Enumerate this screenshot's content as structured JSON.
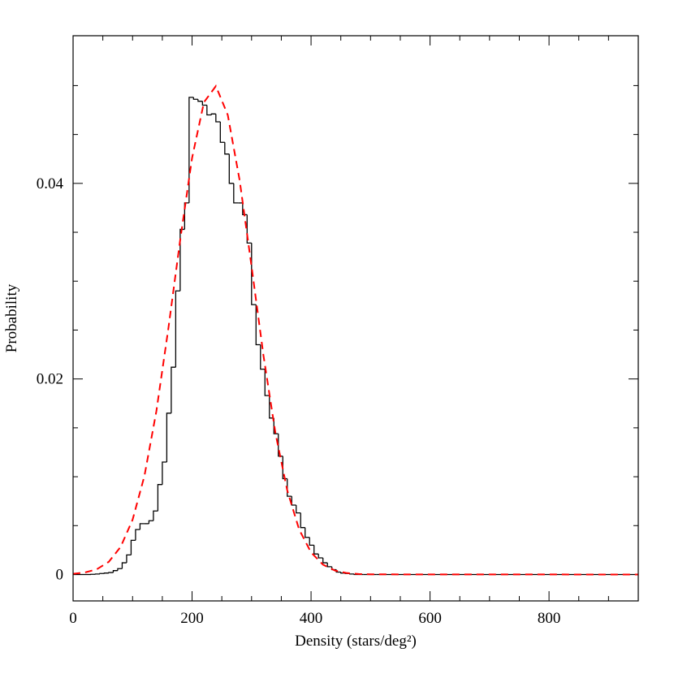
{
  "chart_data": {
    "type": "histogram",
    "x_label": "Density (stars/deg²)",
    "y_label": "Probability",
    "xlim": [
      0,
      950
    ],
    "ylim": [
      -0.0027,
      0.0551
    ],
    "xticks": [
      0,
      200,
      400,
      600,
      800
    ],
    "yticks": [
      0,
      0.02,
      0.04
    ],
    "xminorticks": [
      50,
      100,
      150,
      250,
      300,
      350,
      450,
      500,
      550,
      650,
      700,
      750,
      850,
      900
    ],
    "yminorticks": [
      0.005,
      0.01,
      0.015,
      0.025,
      0.03,
      0.035,
      0.045,
      0.05
    ],
    "series": [
      {
        "type": "histogram",
        "color": "#000000",
        "bins": [
          0,
          7.5,
          15,
          22.5,
          30,
          37.5,
          45,
          52.5,
          60,
          67.5,
          75,
          82.5,
          90,
          97.5,
          105,
          112.5,
          120,
          127.5,
          135,
          142.5,
          150,
          157.5,
          165,
          172.5,
          180,
          187.5,
          195,
          202.5,
          210,
          217.5,
          225,
          232.5,
          240,
          247.5,
          255,
          262.5,
          270,
          277.5,
          285,
          292.5,
          300,
          307.5,
          315,
          322.5,
          330,
          337.5,
          345,
          352.5,
          360,
          367.5,
          375,
          382.5,
          390,
          397.5,
          405,
          412.5,
          420,
          427.5,
          435,
          442.5,
          450,
          457.5,
          465,
          472.5,
          480,
          487.5,
          495,
          502.5,
          510,
          517.5,
          525,
          950
        ],
        "values": [
          0,
          0,
          0,
          0,
          2e-05,
          5e-05,
          0.0001,
          0.00015,
          0.0002,
          0.0004,
          0.0006,
          0.0012,
          0.002,
          0.0035,
          0.0046,
          0.0052,
          0.0052,
          0.0055,
          0.0065,
          0.0092,
          0.0115,
          0.0165,
          0.0212,
          0.029,
          0.0353,
          0.038,
          0.0488,
          0.0486,
          0.0484,
          0.048,
          0.047,
          0.0471,
          0.0463,
          0.0442,
          0.043,
          0.04,
          0.038,
          0.038,
          0.0368,
          0.0339,
          0.0276,
          0.0235,
          0.021,
          0.0183,
          0.016,
          0.0144,
          0.0121,
          0.0098,
          0.008,
          0.0071,
          0.0063,
          0.0048,
          0.0038,
          0.003,
          0.0021,
          0.0017,
          0.0012,
          0.0008,
          0.0005,
          0.00025,
          0.00015,
          0.0001,
          5e-05,
          0,
          0,
          0,
          0,
          0,
          0,
          0,
          0
        ]
      },
      {
        "type": "line",
        "color": "#ff0000",
        "dashed": true,
        "x": [
          0,
          20,
          40,
          60,
          80,
          100,
          120,
          140,
          160,
          180,
          200,
          220,
          240,
          260,
          280,
          300,
          320,
          340,
          360,
          380,
          400,
          420,
          440,
          460,
          480,
          500,
          950
        ],
        "values": [
          7e-05,
          0.00021,
          0.00054,
          0.0013,
          0.00283,
          0.0056,
          0.0101,
          0.0167,
          0.0251,
          0.0342,
          0.0426,
          0.0483,
          0.04995,
          0.047,
          0.0403,
          0.0315,
          0.0224,
          0.0145,
          0.0086,
          0.0046,
          0.00226,
          0.00101,
          0.00041,
          0.00015,
          5e-05,
          1.6e-05,
          0
        ]
      }
    ]
  }
}
